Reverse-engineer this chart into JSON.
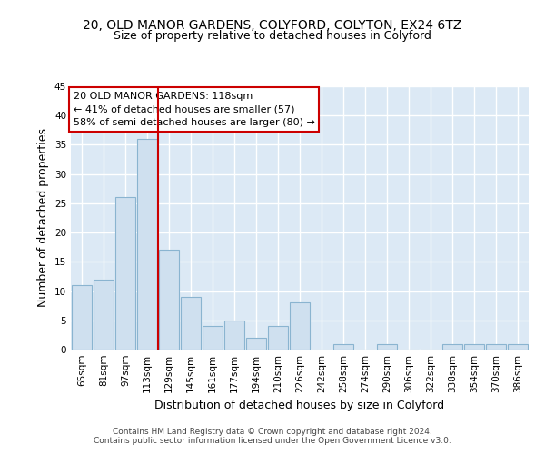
{
  "title1": "20, OLD MANOR GARDENS, COLYFORD, COLYTON, EX24 6TZ",
  "title2": "Size of property relative to detached houses in Colyford",
  "xlabel": "Distribution of detached houses by size in Colyford",
  "ylabel": "Number of detached properties",
  "bin_labels": [
    "65sqm",
    "81sqm",
    "97sqm",
    "113sqm",
    "129sqm",
    "145sqm",
    "161sqm",
    "177sqm",
    "194sqm",
    "210sqm",
    "226sqm",
    "242sqm",
    "258sqm",
    "274sqm",
    "290sqm",
    "306sqm",
    "322sqm",
    "338sqm",
    "354sqm",
    "370sqm",
    "386sqm"
  ],
  "counts": [
    11,
    12,
    26,
    36,
    17,
    9,
    4,
    5,
    2,
    4,
    8,
    0,
    1,
    0,
    1,
    0,
    0,
    1,
    1,
    1,
    1
  ],
  "bar_color": "#cfe0ef",
  "bar_edge_color": "#8ab4d0",
  "red_line_x": 3.5,
  "red_line_color": "#cc0000",
  "annotation_text": "20 OLD MANOR GARDENS: 118sqm\n← 41% of detached houses are smaller (57)\n58% of semi-detached houses are larger (80) →",
  "annotation_box_color": "#ffffff",
  "annotation_box_edge": "#cc0000",
  "ylim": [
    0,
    45
  ],
  "yticks": [
    0,
    5,
    10,
    15,
    20,
    25,
    30,
    35,
    40,
    45
  ],
  "footer_line1": "Contains HM Land Registry data © Crown copyright and database right 2024.",
  "footer_line2": "Contains public sector information licensed under the Open Government Licence v3.0.",
  "plot_bg_color": "#dce9f5",
  "title1_fontsize": 10,
  "title2_fontsize": 9,
  "axis_label_fontsize": 9,
  "tick_fontsize": 7.5,
  "annotation_fontsize": 8,
  "footer_fontsize": 6.5
}
